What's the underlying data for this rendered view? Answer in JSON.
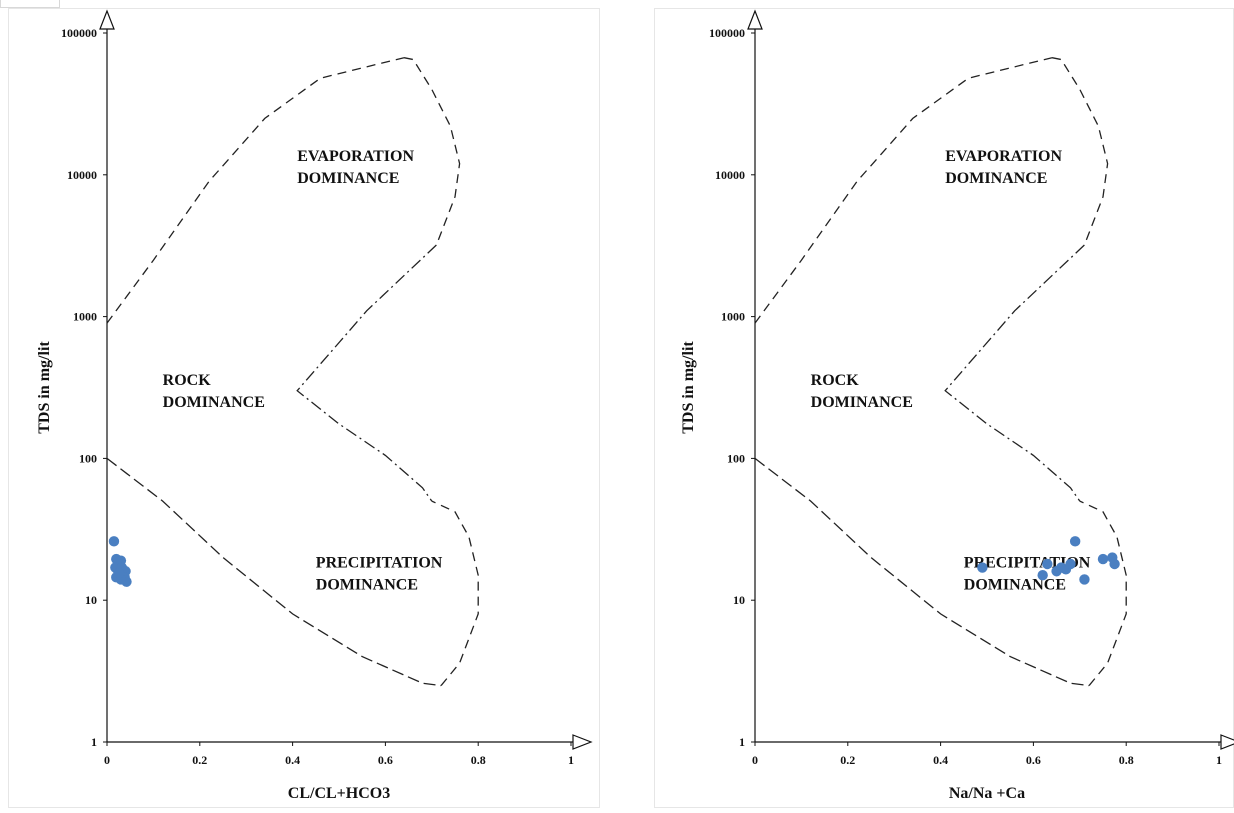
{
  "chart_data": [
    {
      "type": "scatter",
      "id": "left",
      "title": "",
      "xlabel": "CL/CL+HCO3",
      "ylabel": "TDS in mg/lit",
      "xlim": [
        0,
        1
      ],
      "ylim": [
        1,
        100000
      ],
      "y_scale": "log",
      "x_ticks": [
        "0",
        "0.2",
        "0.4",
        "0.6",
        "0.8",
        "1"
      ],
      "y_ticks": [
        "1",
        "10",
        "100",
        "1000",
        "10000",
        "100000"
      ],
      "grid": false,
      "legend": "none",
      "point_color": "#4a7fc1",
      "regions": [
        {
          "lines": [
            "EVAPORATION",
            "DOMINANCE"
          ],
          "x": 0.41,
          "y": 12500
        },
        {
          "lines": [
            "ROCK",
            "DOMINANCE"
          ],
          "x": 0.12,
          "y": 330
        },
        {
          "lines": [
            "PRECIPITATION",
            "DOMINANCE"
          ],
          "x": 0.45,
          "y": 17
        }
      ],
      "points": [
        {
          "x": 0.015,
          "y": 26
        },
        {
          "x": 0.02,
          "y": 19.5
        },
        {
          "x": 0.025,
          "y": 18.5
        },
        {
          "x": 0.03,
          "y": 19
        },
        {
          "x": 0.018,
          "y": 17
        },
        {
          "x": 0.022,
          "y": 16.5
        },
        {
          "x": 0.028,
          "y": 16
        },
        {
          "x": 0.032,
          "y": 17
        },
        {
          "x": 0.035,
          "y": 15.5
        },
        {
          "x": 0.025,
          "y": 15
        },
        {
          "x": 0.02,
          "y": 14.5
        },
        {
          "x": 0.04,
          "y": 16
        },
        {
          "x": 0.038,
          "y": 14.5
        },
        {
          "x": 0.042,
          "y": 13.5
        },
        {
          "x": 0.03,
          "y": 14
        },
        {
          "x": 0.026,
          "y": 15.5
        }
      ]
    },
    {
      "type": "scatter",
      "id": "right",
      "title": "",
      "xlabel": "Na/Na +Ca",
      "ylabel": "TDS in mg/lit",
      "xlim": [
        0,
        1
      ],
      "ylim": [
        1,
        100000
      ],
      "y_scale": "log",
      "x_ticks": [
        "0",
        "0.2",
        "0.4",
        "0.6",
        "0.8",
        "1"
      ],
      "y_ticks": [
        "1",
        "10",
        "100",
        "1000",
        "10000",
        "100000"
      ],
      "grid": false,
      "legend": "none",
      "point_color": "#4a7fc1",
      "regions": [
        {
          "lines": [
            "EVAPORATION",
            "DOMINANCE"
          ],
          "x": 0.41,
          "y": 12500
        },
        {
          "lines": [
            "ROCK",
            "DOMINANCE"
          ],
          "x": 0.12,
          "y": 330
        },
        {
          "lines": [
            "PRECIPITATION",
            "DOMINANCE"
          ],
          "x": 0.45,
          "y": 17
        }
      ],
      "points": [
        {
          "x": 0.49,
          "y": 17
        },
        {
          "x": 0.62,
          "y": 15
        },
        {
          "x": 0.63,
          "y": 18
        },
        {
          "x": 0.65,
          "y": 16
        },
        {
          "x": 0.66,
          "y": 17
        },
        {
          "x": 0.67,
          "y": 16.5
        },
        {
          "x": 0.68,
          "y": 18
        },
        {
          "x": 0.69,
          "y": 26
        },
        {
          "x": 0.71,
          "y": 14
        },
        {
          "x": 0.75,
          "y": 19.5
        },
        {
          "x": 0.77,
          "y": 20
        },
        {
          "x": 0.775,
          "y": 18
        }
      ]
    }
  ]
}
